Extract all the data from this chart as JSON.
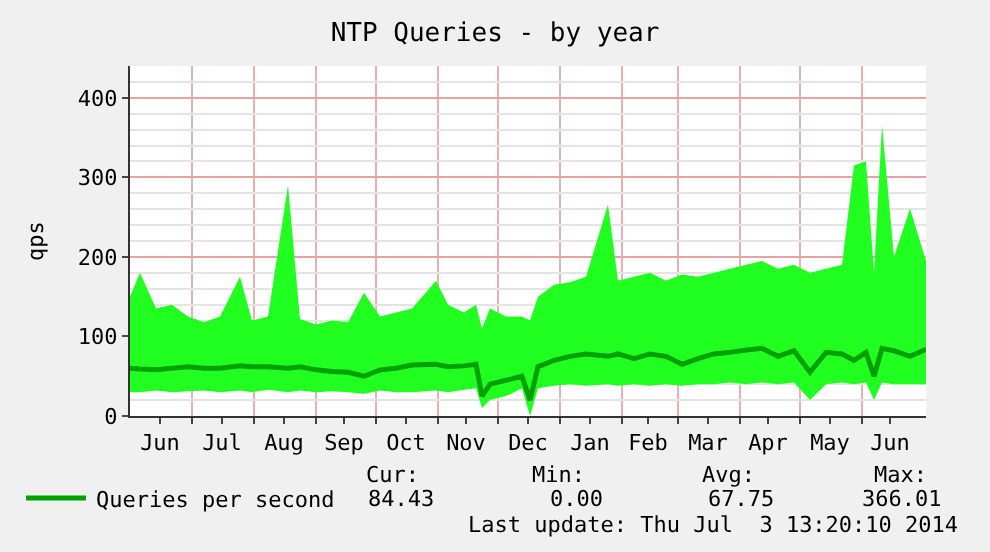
{
  "chart_data": {
    "type": "line",
    "title": "NTP Queries - by year",
    "ylabel": "qps",
    "x": [
      "2013-05-31",
      "2013-06-05",
      "2013-06-13",
      "2013-06-21",
      "2013-06-29",
      "2013-07-07",
      "2013-07-15",
      "2013-07-25",
      "2013-07-31",
      "2013-08-08",
      "2013-08-18",
      "2013-08-24",
      "2013-09-01",
      "2013-09-09",
      "2013-09-17",
      "2013-09-25",
      "2013-10-03",
      "2013-10-11",
      "2013-10-19",
      "2013-10-31",
      "2013-11-06",
      "2013-11-14",
      "2013-11-20",
      "2013-11-23",
      "2013-11-27",
      "2013-12-05",
      "2013-12-13",
      "2013-12-17",
      "2013-12-21",
      "2013-12-29",
      "2014-01-06",
      "2014-01-14",
      "2014-01-25",
      "2014-01-30",
      "2014-02-07",
      "2014-02-15",
      "2014-02-23",
      "2014-03-03",
      "2014-03-11",
      "2014-03-19",
      "2014-03-27",
      "2014-04-04",
      "2014-04-12",
      "2014-04-20",
      "2014-04-28",
      "2014-05-06",
      "2014-05-14",
      "2014-05-22",
      "2014-05-28",
      "2014-06-03",
      "2014-06-07",
      "2014-06-11",
      "2014-06-17",
      "2014-06-25",
      "2014-07-03"
    ],
    "series": [
      {
        "name": "Queries per second",
        "color": "#00a000",
        "values": [
          60,
          59,
          58,
          60,
          62,
          60,
          60,
          63,
          62,
          62,
          60,
          62,
          58,
          56,
          55,
          50,
          58,
          60,
          64,
          65,
          62,
          63,
          65,
          25,
          40,
          45,
          50,
          20,
          62,
          70,
          75,
          78,
          75,
          78,
          72,
          78,
          75,
          65,
          72,
          78,
          80,
          83,
          85,
          75,
          82,
          55,
          80,
          78,
          70,
          80,
          50,
          85,
          82,
          75,
          84
        ],
        "lower": [
          30,
          30,
          32,
          30,
          31,
          32,
          30,
          32,
          30,
          33,
          30,
          32,
          30,
          31,
          30,
          28,
          32,
          30,
          30,
          32,
          30,
          33,
          35,
          10,
          20,
          25,
          35,
          0,
          35,
          38,
          40,
          38,
          40,
          38,
          40,
          38,
          40,
          38,
          40,
          40,
          42,
          40,
          42,
          40,
          42,
          20,
          40,
          42,
          40,
          42,
          20,
          42,
          40,
          40,
          40
        ],
        "upper": [
          150,
          180,
          135,
          140,
          125,
          118,
          125,
          175,
          120,
          125,
          290,
          122,
          115,
          120,
          118,
          155,
          125,
          130,
          135,
          170,
          140,
          130,
          140,
          110,
          135,
          125,
          125,
          120,
          150,
          165,
          168,
          175,
          266,
          170,
          175,
          180,
          170,
          178,
          175,
          180,
          185,
          190,
          195,
          185,
          190,
          180,
          185,
          190,
          315,
          320,
          180,
          366,
          200,
          261,
          195
        ]
      }
    ],
    "xlim": [
      "2013-05-31",
      "2014-07-03"
    ],
    "xticks": [
      {
        "value": "2013-06-15",
        "label": "Jun"
      },
      {
        "value": "2013-07-01",
        "label": null
      },
      {
        "value": "2013-07-16",
        "label": "Jul"
      },
      {
        "value": "2013-08-01",
        "label": null
      },
      {
        "value": "2013-08-16",
        "label": "Aug"
      },
      {
        "value": "2013-09-01",
        "label": null
      },
      {
        "value": "2013-09-15",
        "label": "Sep"
      },
      {
        "value": "2013-10-01",
        "label": null
      },
      {
        "value": "2013-10-16",
        "label": "Oct"
      },
      {
        "value": "2013-11-01",
        "label": null
      },
      {
        "value": "2013-11-15",
        "label": "Nov"
      },
      {
        "value": "2013-12-01",
        "label": null
      },
      {
        "value": "2013-12-16",
        "label": "Dec"
      },
      {
        "value": "2014-01-01",
        "label": null
      },
      {
        "value": "2014-01-16",
        "label": "Jan"
      },
      {
        "value": "2014-02-01",
        "label": null
      },
      {
        "value": "2014-02-14",
        "label": "Feb"
      },
      {
        "value": "2014-03-01",
        "label": null
      },
      {
        "value": "2014-03-16",
        "label": "Mar"
      },
      {
        "value": "2014-04-01",
        "label": null
      },
      {
        "value": "2014-04-15",
        "label": "Apr"
      },
      {
        "value": "2014-05-01",
        "label": null
      },
      {
        "value": "2014-05-16",
        "label": "May"
      },
      {
        "value": "2014-06-01",
        "label": null
      },
      {
        "value": "2014-06-15",
        "label": "Jun"
      }
    ],
    "ylim": [
      0,
      440
    ],
    "yticks": [
      0,
      100,
      200,
      300,
      400
    ],
    "grid": true,
    "legend": "bottom",
    "marker": "none",
    "line_style": "solid",
    "annotations": [
      "Cur:",
      "84.43",
      "Min:",
      "0.00",
      "Avg:",
      "67.75",
      "Max:",
      "366.01",
      "Last update: Thu Jul  3 13:20:10 2014"
    ]
  }
}
